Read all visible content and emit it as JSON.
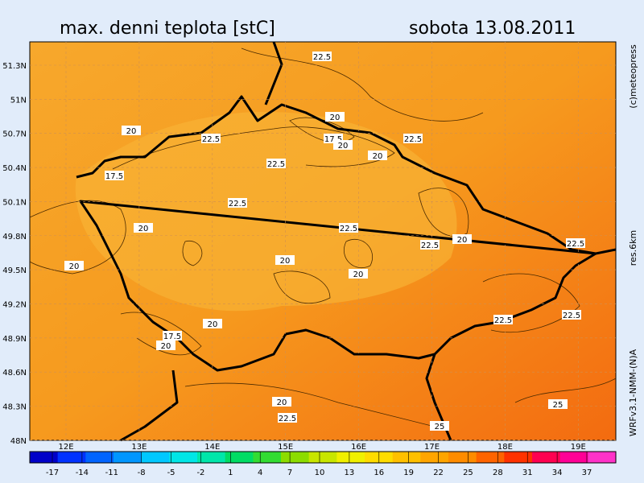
{
  "header": {
    "title": "max. denni teplota [stC]",
    "date": "sobota 13.08.2011"
  },
  "side_labels": {
    "credit": "(c)meteopress",
    "resolution": "res.6km",
    "model": "WRFv3.1-NMM-(N)A"
  },
  "map": {
    "lat_labels": [
      "51.3N",
      "51N",
      "50.7N",
      "50.4N",
      "50.1N",
      "49.8N",
      "49.5N",
      "49.2N",
      "48.9N",
      "48.6N",
      "48.3N",
      "48N"
    ],
    "lon_labels": [
      "12E",
      "13E",
      "14E",
      "15E",
      "16E",
      "17E",
      "18E",
      "19E"
    ],
    "contour_labels": [
      "22.5",
      "20",
      "20",
      "22.5",
      "17.5",
      "20",
      "22.5",
      "20",
      "22.5",
      "17.5",
      "22.5",
      "20",
      "22.5",
      "22.5",
      "20",
      "22.5",
      "20",
      "20",
      "20",
      "22.5",
      "22.5",
      "20",
      "17.5",
      "20",
      "20",
      "22.5",
      "25",
      "25"
    ]
  },
  "colorbar": {
    "ticks": [
      -17,
      -14,
      -11,
      -8,
      -5,
      -2,
      1,
      4,
      7,
      10,
      13,
      16,
      19,
      22,
      25,
      28,
      31,
      34,
      37
    ],
    "colors": [
      "#0000c8",
      "#0032ff",
      "#0064ff",
      "#0096ff",
      "#00c8ff",
      "#00e6e6",
      "#00e6aa",
      "#00dc64",
      "#32dc32",
      "#8cdc00",
      "#c8e600",
      "#f0f000",
      "#ffdc00",
      "#ffc000",
      "#ffa500",
      "#ff8c00",
      "#ff6400",
      "#ff3200",
      "#ff0050",
      "#ff0096",
      "#ff32c8"
    ]
  }
}
